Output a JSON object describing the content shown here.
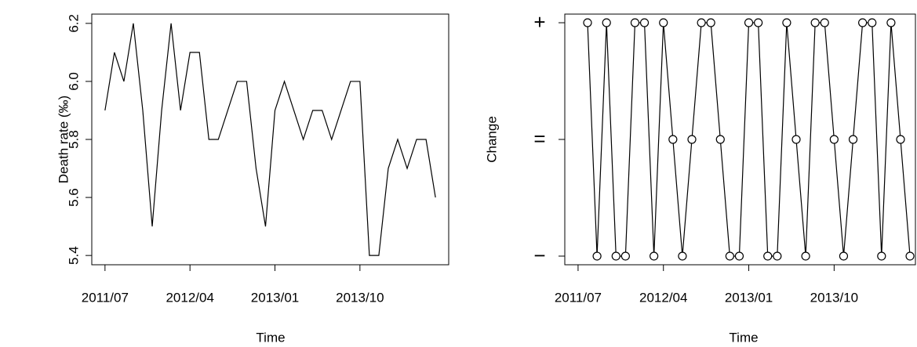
{
  "chart_data": [
    {
      "type": "line",
      "x_label": "Time",
      "y_label": "Death rate (‰)",
      "x": [
        "2011/07",
        "2011/08",
        "2011/09",
        "2011/10",
        "2011/11",
        "2011/12",
        "2012/01",
        "2012/02",
        "2012/03",
        "2012/04",
        "2012/05",
        "2012/06",
        "2012/07",
        "2012/08",
        "2012/09",
        "2012/10",
        "2012/11",
        "2012/12",
        "2013/01",
        "2013/02",
        "2013/03",
        "2013/04",
        "2013/05",
        "2013/06",
        "2013/07",
        "2013/08",
        "2013/09",
        "2013/10",
        "2013/11",
        "2013/12",
        "2014/01",
        "2014/02",
        "2014/03",
        "2014/04",
        "2014/05",
        "2014/06"
      ],
      "series": [
        {
          "color": "#000000",
          "values": [
            5.9,
            6.1,
            6.0,
            6.2,
            5.9,
            5.5,
            5.9,
            6.2,
            5.9,
            6.1,
            6.1,
            5.8,
            5.8,
            5.9,
            6.0,
            6.0,
            5.7,
            5.5,
            5.9,
            6.0,
            5.9,
            5.8,
            5.9,
            5.9,
            5.8,
            5.9,
            6.0,
            6.0,
            5.4,
            5.4,
            5.7,
            5.8,
            5.7,
            5.8,
            5.8,
            5.6
          ]
        }
      ],
      "xticks": [
        "2011/07",
        "2012/04",
        "2013/01",
        "2013/10"
      ],
      "ylim": [
        5.368,
        6.232
      ],
      "yticks": [
        5.4,
        5.6,
        {
          "value": 5.8,
          "label": "5.8"
        },
        {
          "value": 6.0,
          "label": "6.0"
        },
        6.2
      ]
    },
    {
      "type": "line",
      "markers": true,
      "x_label": "Time",
      "y_label": "Change",
      "x": [
        "2011/07",
        "2011/08",
        "2011/09",
        "2011/10",
        "2011/11",
        "2011/12",
        "2012/01",
        "2012/02",
        "2012/03",
        "2012/04",
        "2012/05",
        "2012/06",
        "2012/07",
        "2012/08",
        "2012/09",
        "2012/10",
        "2012/11",
        "2012/12",
        "2013/01",
        "2013/02",
        "2013/03",
        "2013/04",
        "2013/05",
        "2013/06",
        "2013/07",
        "2013/08",
        "2013/09",
        "2013/10",
        "2013/11",
        "2013/12",
        "2014/01",
        "2014/02",
        "2014/03",
        "2014/04",
        "2014/05",
        "2014/06"
      ],
      "series": [
        {
          "color": "#000000",
          "values": [
            null,
            1,
            -1,
            1,
            -1,
            -1,
            1,
            1,
            -1,
            1,
            0,
            -1,
            0,
            1,
            1,
            0,
            -1,
            -1,
            1,
            1,
            -1,
            -1,
            1,
            0,
            -1,
            1,
            1,
            0,
            -1,
            0,
            1,
            1,
            -1,
            1,
            0,
            -1
          ]
        }
      ],
      "xticks": [
        "2011/07",
        "2012/04",
        "2013/01",
        "2013/10"
      ],
      "ylim": [
        -1.074,
        1.074
      ],
      "yticks": [
        {
          "value": -1,
          "label": "−"
        },
        {
          "value": 0,
          "label": "="
        },
        {
          "value": 1,
          "label": "+"
        }
      ]
    }
  ]
}
